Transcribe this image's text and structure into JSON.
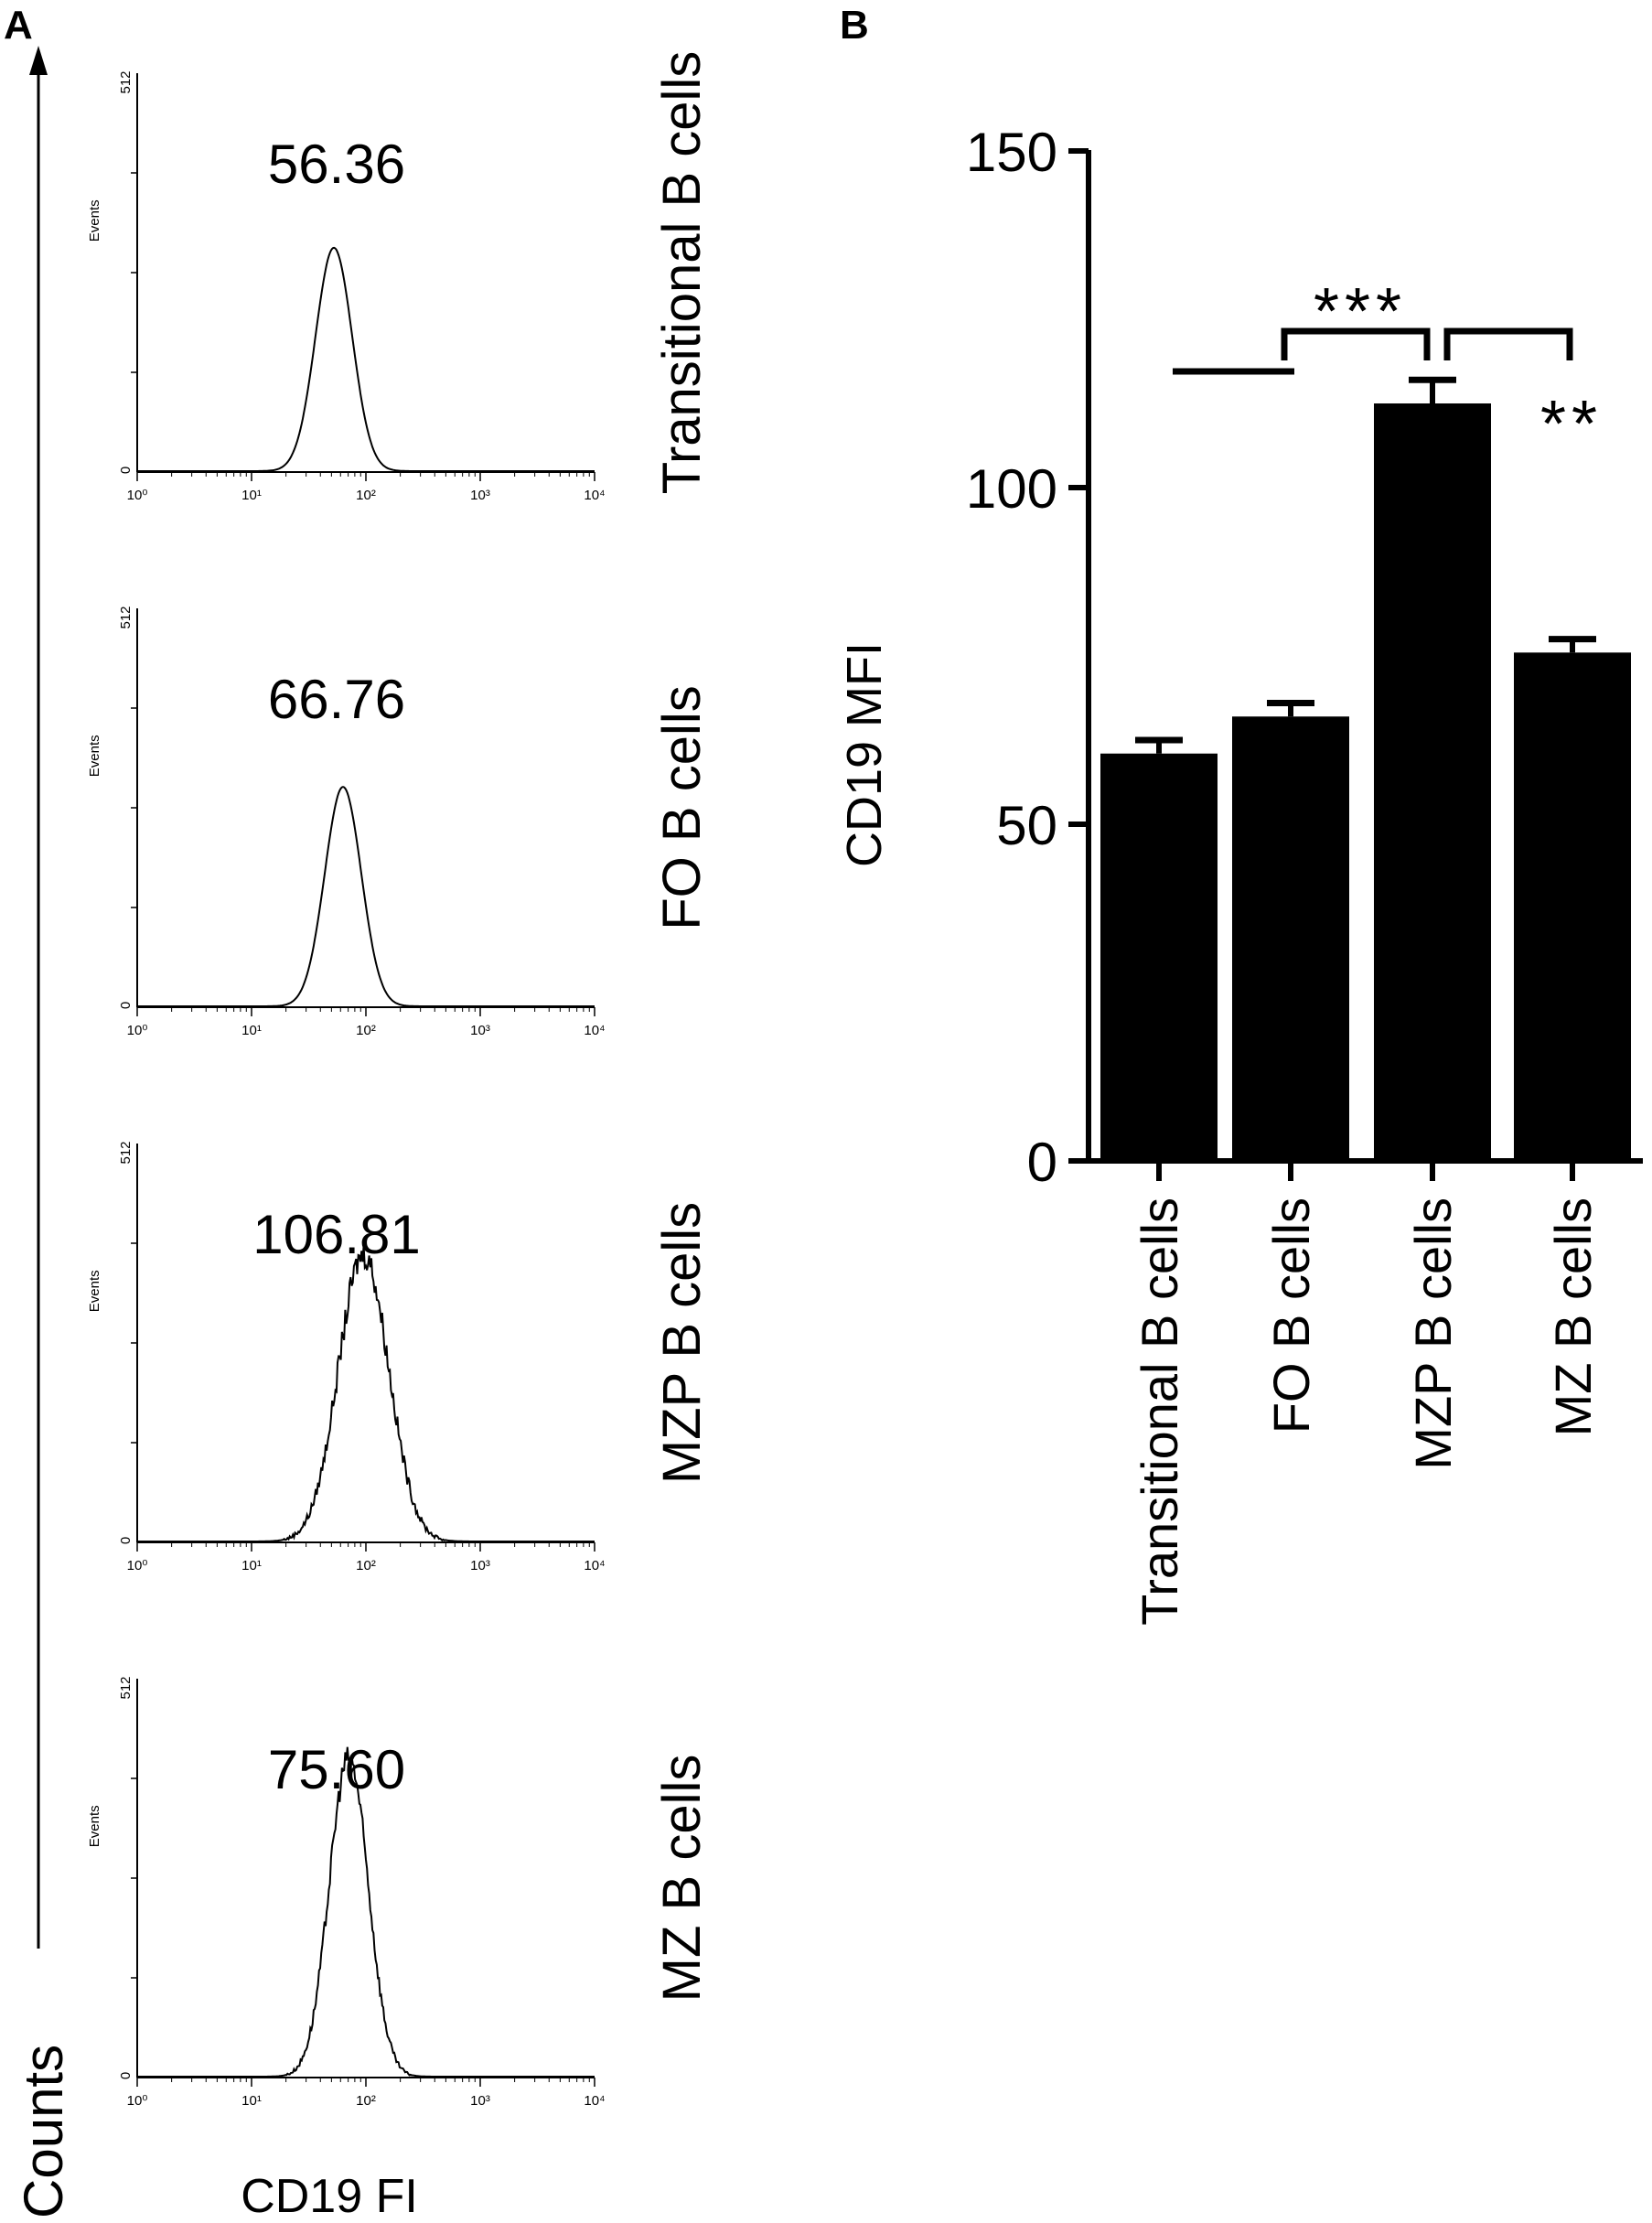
{
  "panel_a": {
    "label": "A",
    "y_axis_label": "Counts",
    "x_axis_label": "CD19 FI",
    "histograms": [
      {
        "population": "Transitional B cells",
        "mfi_label": "56.36",
        "peak_log10": 1.72,
        "peak_height": 0.56,
        "width": 0.16,
        "noise": 0.0
      },
      {
        "population": "FO B cells",
        "mfi_label": "66.76",
        "peak_log10": 1.8,
        "peak_height": 0.55,
        "width": 0.16,
        "noise": 0.0
      },
      {
        "population": "MZP B cells",
        "mfi_label": "106.81",
        "peak_log10": 1.98,
        "peak_height": 0.72,
        "width": 0.22,
        "noise": 0.05
      },
      {
        "population": "MZ B cells",
        "mfi_label": "75.60",
        "peak_log10": 1.85,
        "peak_height": 0.8,
        "width": 0.17,
        "noise": 0.04
      }
    ],
    "hist_y_label": "Events",
    "hist_y_ticks": [
      "0",
      "512"
    ],
    "hist_x_ticks": [
      "10⁰",
      "10¹",
      "10²",
      "10³",
      "10⁴"
    ]
  },
  "chart_data": {
    "type": "bar",
    "label": "B",
    "categories": [
      "Transitional B cells",
      "FO B cells",
      "MZP B cells",
      "MZ B cells"
    ],
    "values": [
      60.5,
      66,
      112.5,
      75.5
    ],
    "errors": [
      2,
      2,
      3.5,
      2
    ],
    "ylabel": "CD19 MFI",
    "ylim": [
      0,
      150
    ],
    "yticks": [
      "0",
      "50",
      "100",
      "150"
    ],
    "bar_color": "#000000",
    "significance": [
      {
        "label": "***",
        "between": "FO B cells – MZP B cells"
      },
      {
        "label": "**",
        "between": "MZP B cells – MZ B cells"
      }
    ]
  }
}
